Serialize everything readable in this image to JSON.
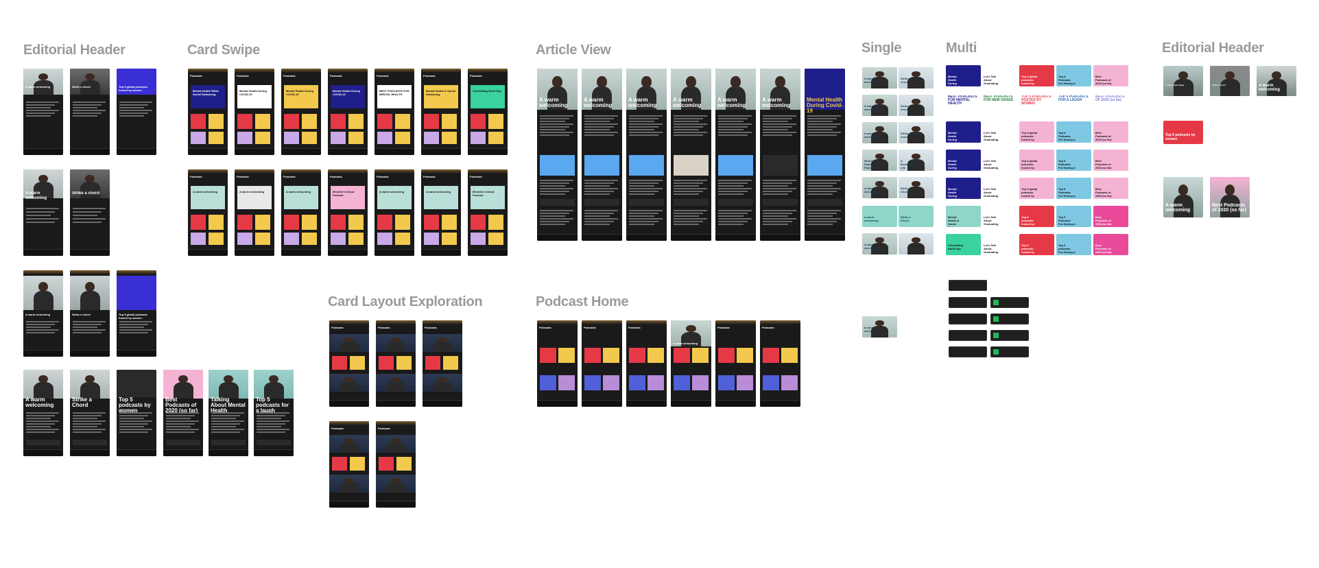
{
  "sections": {
    "editorial_header_left": "Editorial Header",
    "card_swipe": "Card Swipe",
    "article_view": "Article View",
    "single": "Single",
    "multi": "Multi",
    "editorial_header_right": "Editorial Header",
    "card_layout_exploration": "Card Layout Exploration",
    "podcast_home": "Podcast Home"
  },
  "colors": {
    "background": "#ffffff",
    "title": "#9a9a9a",
    "phone": "#1a1a1a",
    "phone_header": "#7a5a2a",
    "blue_card": "#5aa8f0",
    "navy_card": "#1f1f8c",
    "yellow_card": "#f2c94c",
    "pink_card": "#f5b3d4",
    "teal_card": "#8fd6c8",
    "red_card": "#e63946",
    "green_card": "#3ad29f",
    "light_blue_card": "#7ec8e3",
    "magenta_card": "#e94b9a",
    "purple_card": "#3a2fd4"
  },
  "editorial_header_frames": {
    "top_row": [
      "A warm welcoming",
      "Strike a chord",
      "Top 5 global podcasts hosted by women"
    ],
    "bottom_row": [
      "A warm welcoming",
      "Strike a Chord",
      "Top 5 podcasts by women",
      "Best Podcasts of 2020 (so far)",
      "Talking About Mental Health",
      "Top 5 podcasts for a laugh"
    ]
  },
  "card_swipe_frames": {
    "header": "Podcasts",
    "row1": [
      "Mental Health While Social Distancing",
      "Mental Health During COVID-19",
      "Mental Health During COVID-19",
      "Mental Health During COVID-19",
      "BEST PODCASTS FOR MENTAL HEALTH",
      "Mental Health & Social Distancing",
      "Celebrating Earth Day"
    ],
    "row2": [
      "A warm welcoming",
      "A warm welcoming",
      "A warm welcoming",
      "Michelle's Debut Podcast",
      "A warm welcoming",
      "A warm welcoming",
      "Michelle's Debut Podcast"
    ]
  },
  "article_view_frames": [
    "A warm welcoming",
    "A warm welcoming",
    "A warm welcoming",
    "A warm welcoming",
    "A warm welcoming",
    "A warm welcoming",
    "Mental Health During Covid-19"
  ],
  "card_layout_frames": [
    "Podcasts",
    "Podcasts",
    "Podcasts",
    "Podcasts",
    "Podcasts"
  ],
  "podcast_home_frames": [
    "Podcasts",
    "Podcasts",
    "Podcasts",
    "A warm welcoming",
    "Podcasts",
    "Podcasts"
  ],
  "single_cards": [
    "A warm welcoming",
    "Strike a chord",
    "A warm welcoming",
    "Strike a chord",
    "A warm welcoming",
    "Strike a chord",
    "Michelle's Debut Podcast",
    "A Meaningful Life Through Music",
    "A warm welcoming",
    "Strike a Chord",
    "A warm welcoming",
    "Strike a Chord",
    "A warm welcoming"
  ],
  "multi_cards": {
    "row1": [
      "Mental Health During COVID-19",
      "Let's Talk About Graduating",
      "Top 5 global podcasts hosted by women",
      "Top 5 Podcasts For Having A Laugh",
      "Best Podcasts of 2020 (so far)"
    ],
    "row2": [
      "BEST PODCASTS FOR MENTAL HEALTH",
      "BEST PODCASTS FOR NEW GRADS",
      "TOP 5 PODCASTS HOSTED BY WOMEN",
      "TOP 5 PODCASTS FOR A LAUGH",
      "BEST PODCASTS OF 2020 (so far)"
    ],
    "row6": [
      "Mental Health & Social Distancing",
      "Let's Talk About Graduating",
      "Top 5 podcasts hosted by women",
      "Top 5 Podcasts For Having A Laugh",
      "Best Podcasts of 2020 (so far)"
    ],
    "row7": [
      "Celebrating Earth Day",
      "Let's Talk About Graduating",
      "Top 5 podcasts hosted by women",
      "Top 5 podcasts For Having A Laugh",
      "Best Podcasts of 2020 (so far)"
    ]
  },
  "editorial_header_right_frames": [
    "A warm welcoming",
    "Strike a chord",
    "A warm welcoming",
    "Top 5 podcasts by women",
    "A warm welcoming",
    "Best Podcasts of 2020 (so far)"
  ]
}
